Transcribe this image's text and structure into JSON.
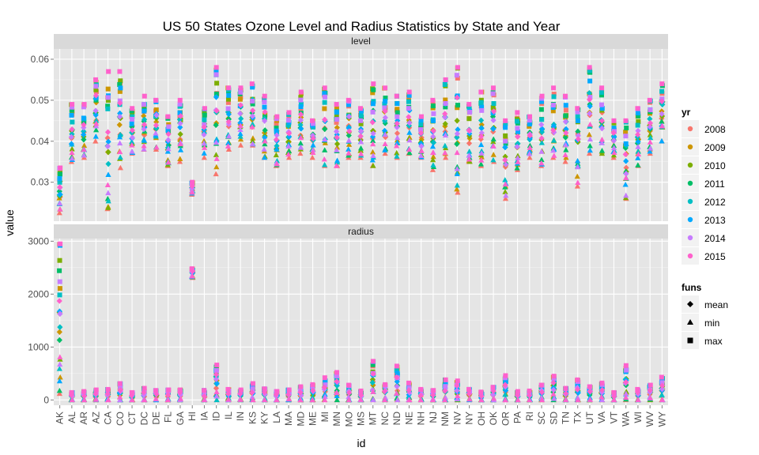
{
  "chart_data": {
    "type": "scatter",
    "title": "US 50 States Ozone Level and Radius Statistics by State and Year",
    "xlabel": "id",
    "ylabel": "value",
    "categories": [
      "AK",
      "AL",
      "AR",
      "AZ",
      "CA",
      "CO",
      "CT",
      "DC",
      "DE",
      "FL",
      "GA",
      "HI",
      "IA",
      "ID",
      "IL",
      "IN",
      "KS",
      "KY",
      "LA",
      "MA",
      "MD",
      "ME",
      "MI",
      "MN",
      "MO",
      "MS",
      "MT",
      "NC",
      "ND",
      "NE",
      "NH",
      "NJ",
      "NM",
      "NV",
      "NY",
      "OH",
      "OK",
      "OR",
      "PA",
      "RI",
      "SC",
      "SD",
      "TN",
      "TX",
      "UT",
      "VA",
      "VT",
      "WA",
      "WI",
      "WV",
      "WY"
    ],
    "panels": [
      {
        "name": "level",
        "ylim": [
          0.0205,
          0.0625
        ],
        "yticks": [
          0.03,
          0.04,
          0.05,
          0.06
        ],
        "ytick_labels": [
          "0.03",
          "0.04",
          "0.05",
          "0.06"
        ],
        "spread": 0.006,
        "min": [
          0.0225,
          0.035,
          0.036,
          0.04,
          0.0235,
          0.0335,
          0.037,
          0.038,
          0.038,
          0.034,
          0.035,
          0.027,
          0.036,
          0.032,
          0.038,
          0.039,
          0.039,
          0.036,
          0.034,
          0.036,
          0.037,
          0.036,
          0.034,
          0.034,
          0.036,
          0.036,
          0.034,
          0.037,
          0.036,
          0.037,
          0.036,
          0.033,
          0.036,
          0.0275,
          0.035,
          0.034,
          0.035,
          0.026,
          0.033,
          0.036,
          0.034,
          0.036,
          0.035,
          0.029,
          0.037,
          0.037,
          0.036,
          0.026,
          0.034,
          0.037,
          0.04
        ],
        "max": [
          0.0335,
          0.049,
          0.049,
          0.055,
          0.057,
          0.057,
          0.048,
          0.051,
          0.05,
          0.046,
          0.05,
          0.03,
          0.048,
          0.058,
          0.053,
          0.053,
          0.054,
          0.051,
          0.046,
          0.047,
          0.052,
          0.045,
          0.053,
          0.049,
          0.05,
          0.048,
          0.054,
          0.053,
          0.051,
          0.052,
          0.046,
          0.05,
          0.055,
          0.058,
          0.049,
          0.052,
          0.053,
          0.045,
          0.047,
          0.046,
          0.051,
          0.053,
          0.051,
          0.048,
          0.058,
          0.053,
          0.045,
          0.045,
          0.048,
          0.05,
          0.054
        ]
      },
      {
        "name": "radius",
        "ylim": [
          -100,
          3050
        ],
        "yticks": [
          0,
          1000,
          2000,
          3000
        ],
        "ytick_labels": [
          "0",
          "1000",
          "2000",
          "3000"
        ],
        "spread": 60,
        "min": [
          160,
          0,
          0,
          0,
          0,
          0,
          0,
          0,
          0,
          0,
          0,
          2350,
          0,
          0,
          0,
          0,
          0,
          0,
          0,
          0,
          0,
          0,
          0,
          0,
          0,
          0,
          0,
          0,
          0,
          0,
          0,
          0,
          0,
          0,
          0,
          0,
          0,
          0,
          0,
          0,
          0,
          0,
          0,
          0,
          0,
          0,
          0,
          0,
          0,
          0,
          0
        ],
        "max": [
          2950,
          140,
          160,
          190,
          200,
          310,
          140,
          220,
          180,
          190,
          190,
          2480,
          180,
          660,
          200,
          190,
          310,
          210,
          160,
          190,
          250,
          290,
          420,
          520,
          280,
          170,
          730,
          290,
          640,
          320,
          200,
          180,
          380,
          360,
          200,
          150,
          240,
          460,
          160,
          170,
          280,
          450,
          220,
          380,
          250,
          320,
          140,
          650,
          200,
          280,
          430
        ]
      }
    ],
    "legend": {
      "color_title": "yr",
      "years": [
        "2008",
        "2009",
        "2010",
        "2011",
        "2012",
        "2013",
        "2014",
        "2015"
      ],
      "year_colors": [
        "#F8766D",
        "#CD9600",
        "#7CAE00",
        "#00BE67",
        "#00BFC4",
        "#00A9FF",
        "#C77CFF",
        "#FF61CC"
      ],
      "shape_title": "funs",
      "shapes": [
        "mean",
        "min",
        "max"
      ]
    }
  }
}
